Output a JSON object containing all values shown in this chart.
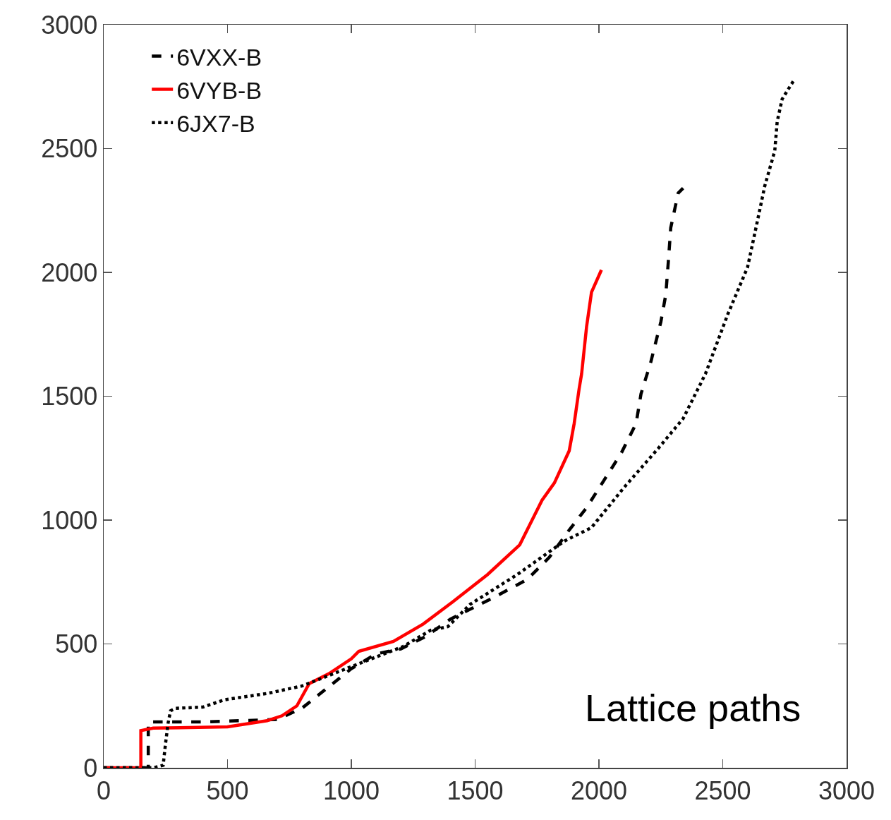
{
  "chart_data": {
    "type": "line",
    "xlim": [
      0,
      3000
    ],
    "ylim": [
      0,
      3000
    ],
    "xticks": [
      0,
      500,
      1000,
      1500,
      2000,
      2500,
      3000
    ],
    "yticks": [
      0,
      500,
      1000,
      1500,
      2000,
      2500,
      3000
    ],
    "grid": false,
    "legend": "top left",
    "marker": "none",
    "annotations": [
      "Lattice paths"
    ],
    "series": [
      {
        "name": "6VXX-B",
        "color": "#000000",
        "line_style": "dashed",
        "x": [
          0,
          180,
          180,
          400,
          700,
          800,
          900,
          1000,
          1100,
          1200,
          1300,
          1400,
          1480,
          1580,
          1710,
          1800,
          1880,
          1950,
          2020,
          2090,
          2150,
          2170,
          2210,
          2250,
          2270,
          2280,
          2290,
          2320,
          2340
        ],
        "values": [
          0,
          0,
          185,
          185,
          195,
          240,
          320,
          400,
          460,
          480,
          530,
          600,
          640,
          690,
          760,
          850,
          960,
          1050,
          1160,
          1270,
          1390,
          1510,
          1640,
          1800,
          1910,
          2040,
          2180,
          2320,
          2340
        ]
      },
      {
        "name": "6VYB-B",
        "color": "#ff0000",
        "line_style": "solid",
        "x": [
          0,
          150,
          150,
          200,
          500,
          660,
          720,
          780,
          830,
          910,
          1000,
          1030,
          1170,
          1290,
          1410,
          1550,
          1680,
          1770,
          1820,
          1880,
          1900,
          1920,
          1930,
          1950,
          1970,
          2010
        ],
        "values": [
          0,
          0,
          150,
          160,
          165,
          190,
          210,
          250,
          340,
          380,
          440,
          470,
          510,
          580,
          670,
          780,
          900,
          1080,
          1150,
          1280,
          1390,
          1530,
          1590,
          1780,
          1920,
          2010
        ]
      },
      {
        "name": "6JX7-B",
        "color": "#000000",
        "line_style": "dotted",
        "x": [
          0,
          200,
          240,
          250,
          260,
          270,
          290,
          400,
          490,
          660,
          800,
          890,
          1030,
          1210,
          1320,
          1390,
          1480,
          1670,
          1860,
          1970,
          2100,
          2240,
          2340,
          2400,
          2430,
          2520,
          2600,
          2630,
          2670,
          2710,
          2720,
          2740,
          2790
        ],
        "values": [
          0,
          0,
          10,
          100,
          180,
          230,
          240,
          245,
          275,
          300,
          330,
          365,
          420,
          490,
          555,
          570,
          660,
          780,
          915,
          970,
          1130,
          1290,
          1410,
          1530,
          1590,
          1830,
          2020,
          2160,
          2350,
          2490,
          2610,
          2700,
          2780
        ]
      }
    ]
  }
}
